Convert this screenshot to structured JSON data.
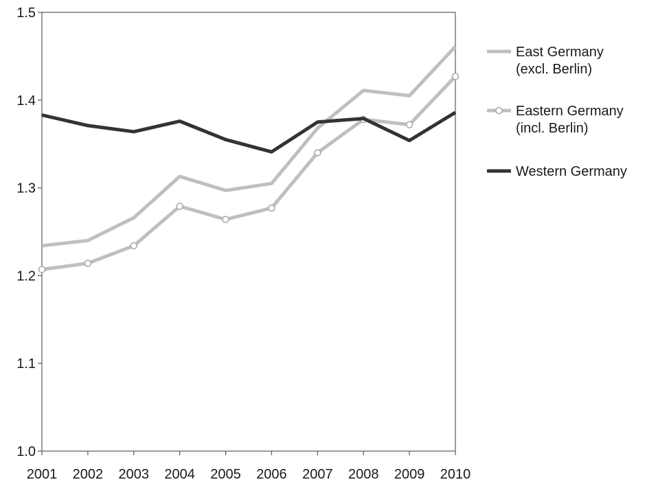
{
  "chart_data": {
    "type": "line",
    "title": "",
    "xlabel": "",
    "ylabel": "",
    "x": [
      "2001",
      "2002",
      "2003",
      "2004",
      "2005",
      "2006",
      "2007",
      "2008",
      "2009",
      "2010"
    ],
    "ylim": [
      1.0,
      1.5
    ],
    "yticks": [
      "1.0",
      "1.1",
      "1.2",
      "1.3",
      "1.4",
      "1.5"
    ],
    "grid": false,
    "legend_position": "right",
    "series": [
      {
        "name_lines": [
          "East Germany",
          "(excl. Berlin)"
        ],
        "values": [
          1.234,
          1.24,
          1.266,
          1.313,
          1.297,
          1.305,
          1.368,
          1.411,
          1.405,
          1.461
        ],
        "color": "#bfbfbf",
        "markers": false
      },
      {
        "name_lines": [
          "Eastern Germany",
          "(incl. Berlin)"
        ],
        "values": [
          1.207,
          1.214,
          1.234,
          1.279,
          1.264,
          1.277,
          1.34,
          1.378,
          1.372,
          1.427
        ],
        "color": "#bfbfbf",
        "markers": true
      },
      {
        "name_lines": [
          "Western Germany"
        ],
        "values": [
          1.383,
          1.371,
          1.364,
          1.376,
          1.355,
          1.341,
          1.375,
          1.379,
          1.354,
          1.386
        ],
        "color": "#333333",
        "markers": false
      }
    ]
  }
}
